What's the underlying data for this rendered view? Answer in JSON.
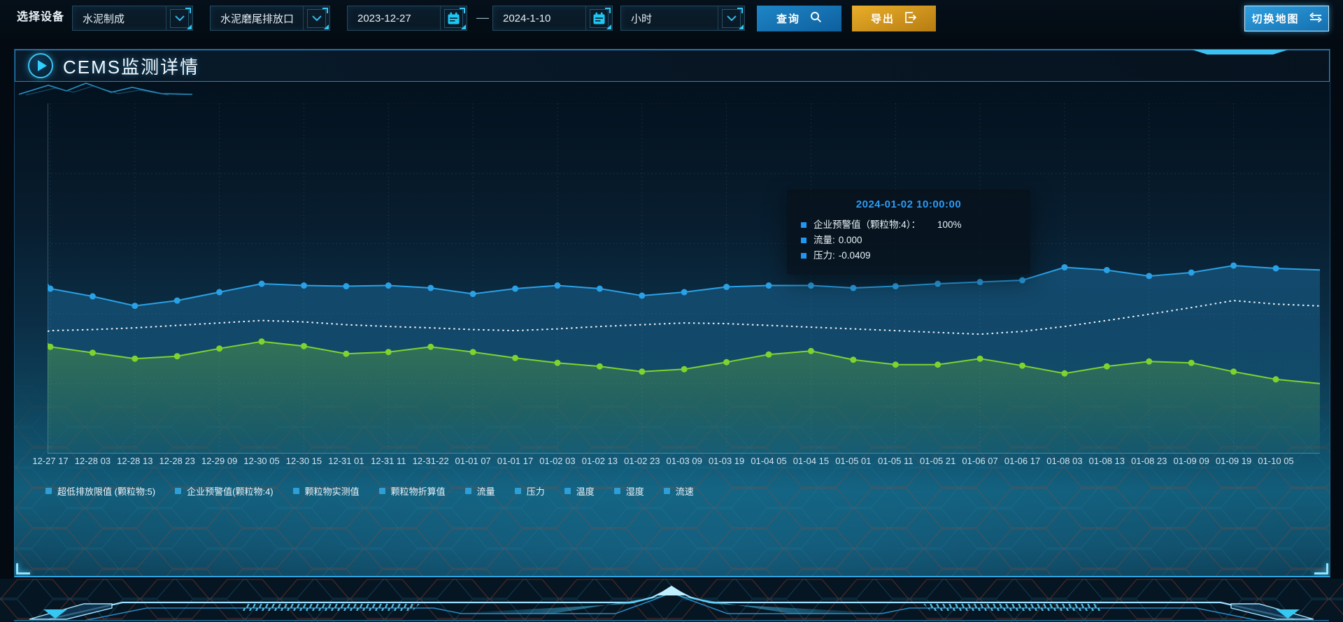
{
  "toolbar": {
    "device_label": "选择设备",
    "select_process": {
      "value": "水泥制成"
    },
    "select_outlet": {
      "value": "水泥磨尾排放口"
    },
    "date_start": {
      "value": "2023-12-27"
    },
    "date_separator": "—",
    "date_end": {
      "value": "2024-1-10"
    },
    "select_interval": {
      "value": "小时"
    },
    "query_button": {
      "label": "查询"
    },
    "export_button": {
      "label": "导出"
    },
    "switch_map_button": {
      "label": "切换地图"
    }
  },
  "panel": {
    "title": "CEMS监测详情"
  },
  "tooltip": {
    "title": "2024-01-02 10:00:00",
    "marker_color": "#2196f3",
    "items": [
      {
        "label": "企业预警值（颗粒物:4）：",
        "value": "100%"
      },
      {
        "label": "流量:",
        "value": "0.000"
      },
      {
        "label": "压力:",
        "value": "-0.0409"
      }
    ]
  },
  "legend": {
    "marker_color": "#2d9fd6",
    "items": [
      "超低排放限值 (颗粒物:5)",
      "企业预警值(颗粒物:4)",
      "颗粒物实测值",
      "颗粒物折算值",
      "流量",
      "压力",
      "温度",
      "湿度",
      "流速"
    ]
  },
  "chart_data": {
    "type": "line",
    "title": "CEMS监测详情",
    "xlabel": "",
    "ylabel": "",
    "grid": "dashed",
    "legend_position": "bottom",
    "value_unit": "percent of plot height from bottom (no y-axis tick labels are shown in the chart)",
    "ylim": [
      0,
      100
    ],
    "x": [
      "12-27 17",
      "12-28 03",
      "12-28 13",
      "12-28 23",
      "12-29 09",
      "12-30 05",
      "12-30 15",
      "12-31 01",
      "12-31 11",
      "12-31-22",
      "01-01 07",
      "01-01 17",
      "01-02 03",
      "01-02 13",
      "01-02 23",
      "01-03 09",
      "01-03 19",
      "01-04 05",
      "01-04 15",
      "01-05 01",
      "01-05 11",
      "01-05 21",
      "01-06 07",
      "01-06 17",
      "01-08 03",
      "01-08 13",
      "01-08 23",
      "01-09 09",
      "01-09 19",
      "01-10 05"
    ],
    "series": [
      {
        "name": "企业预警值(颗粒物:4)",
        "color": "#2aa1e6",
        "style": "solid",
        "points": true,
        "area": true,
        "values": [
          47.1,
          44.9,
          42.2,
          43.7,
          46.1,
          48.5,
          48.0,
          47.8,
          48.0,
          47.3,
          45.6,
          47.1,
          48.0,
          47.1,
          45.1,
          46.1,
          47.6,
          48.0,
          48.0,
          47.3,
          47.8,
          48.5,
          49.0,
          49.5,
          53.2,
          52.4,
          50.7,
          51.7,
          53.7,
          52.9
        ]
      },
      {
        "name": "流量",
        "color": "#eef5f9",
        "style": "dotted",
        "points": false,
        "area": false,
        "values": [
          35.1,
          35.4,
          35.9,
          36.6,
          37.3,
          38.0,
          37.6,
          36.8,
          36.3,
          35.9,
          35.4,
          35.1,
          35.6,
          36.3,
          36.8,
          37.3,
          37.1,
          36.6,
          36.1,
          35.6,
          35.1,
          34.6,
          34.1,
          34.9,
          36.3,
          38.0,
          39.8,
          41.7,
          43.7,
          42.7
        ]
      },
      {
        "name": "压力",
        "color": "#7fd32f",
        "style": "solid",
        "points": true,
        "area": true,
        "values": [
          30.5,
          28.8,
          27.1,
          27.8,
          30.0,
          32.0,
          30.7,
          28.5,
          29.0,
          30.5,
          29.0,
          27.3,
          25.9,
          24.9,
          23.4,
          24.1,
          26.1,
          28.3,
          29.3,
          26.8,
          25.4,
          25.4,
          27.1,
          25.1,
          22.9,
          24.9,
          26.3,
          25.9,
          23.4,
          21.2
        ]
      }
    ]
  },
  "colors": {
    "accent_cyan": "#38c6f2",
    "header_border": "#1f86c8",
    "query_button": "#1470ae",
    "export_button": "#cf9318",
    "tooltip_title": "#2d9bf5"
  }
}
